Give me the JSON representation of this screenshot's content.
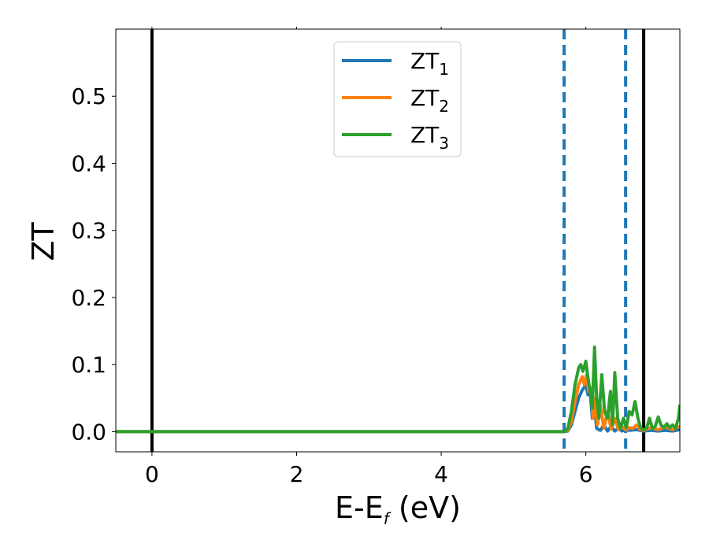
{
  "chart_data": {
    "type": "line",
    "xlabel": "E-E",
    "xlabel_sub": "f",
    "xlabel_unit": " (eV)",
    "ylabel": "ZT",
    "xlim": [
      -0.5,
      7.3
    ],
    "ylim": [
      -0.03,
      0.6
    ],
    "xticks": [
      0,
      2,
      4,
      6
    ],
    "xtick_labels": [
      "0",
      "2",
      "4",
      "6"
    ],
    "yticks": [
      0.0,
      0.1,
      0.2,
      0.3,
      0.4,
      0.5
    ],
    "ytick_labels": [
      "0.0",
      "0.1",
      "0.2",
      "0.3",
      "0.4",
      "0.5"
    ],
    "grid": false,
    "legend_position": "top-center",
    "vlines": [
      {
        "x": 0.0,
        "color": "#000000",
        "style": "solid"
      },
      {
        "x": 5.7,
        "color": "#1f77b4",
        "style": "dashed"
      },
      {
        "x": 6.55,
        "color": "#1f77b4",
        "style": "dashed"
      },
      {
        "x": 6.8,
        "color": "#000000",
        "style": "solid"
      }
    ],
    "series": [
      {
        "name": "ZT",
        "sub": "1",
        "color": "#1f77b4",
        "points": [
          [
            -0.5,
            0
          ],
          [
            5.7,
            0
          ],
          [
            5.75,
            0.001
          ],
          [
            5.8,
            0.01
          ],
          [
            5.85,
            0.03
          ],
          [
            5.9,
            0.05
          ],
          [
            5.95,
            0.062
          ],
          [
            6.0,
            0.07
          ],
          [
            6.03,
            0.055
          ],
          [
            6.06,
            0.058
          ],
          [
            6.09,
            0.02
          ],
          [
            6.12,
            0.035
          ],
          [
            6.15,
            0.005
          ],
          [
            6.2,
            0.002
          ],
          [
            6.25,
            0.01
          ],
          [
            6.3,
            0.001
          ],
          [
            6.35,
            0.008
          ],
          [
            6.4,
            0.001
          ],
          [
            6.45,
            0.005
          ],
          [
            6.5,
            0.001
          ],
          [
            6.55,
            0.003
          ],
          [
            6.6,
            0.002
          ],
          [
            6.7,
            0.003
          ],
          [
            6.8,
            0.001
          ],
          [
            6.9,
            0.002
          ],
          [
            7.0,
            0.001
          ],
          [
            7.1,
            0.002
          ],
          [
            7.2,
            0.001
          ],
          [
            7.3,
            0.003
          ]
        ]
      },
      {
        "name": "ZT",
        "sub": "2",
        "color": "#ff7f0e",
        "points": [
          [
            -0.5,
            0
          ],
          [
            5.7,
            0
          ],
          [
            5.75,
            0.002
          ],
          [
            5.8,
            0.015
          ],
          [
            5.85,
            0.045
          ],
          [
            5.9,
            0.07
          ],
          [
            5.95,
            0.082
          ],
          [
            5.98,
            0.07
          ],
          [
            6.01,
            0.085
          ],
          [
            6.04,
            0.06
          ],
          [
            6.07,
            0.065
          ],
          [
            6.1,
            0.02
          ],
          [
            6.13,
            0.05
          ],
          [
            6.16,
            0.01
          ],
          [
            6.2,
            0.04
          ],
          [
            6.25,
            0.005
          ],
          [
            6.3,
            0.03
          ],
          [
            6.35,
            0.004
          ],
          [
            6.4,
            0.02
          ],
          [
            6.45,
            0.003
          ],
          [
            6.5,
            0.008
          ],
          [
            6.55,
            0.003
          ],
          [
            6.6,
            0.006
          ],
          [
            6.65,
            0.005
          ],
          [
            6.7,
            0.01
          ],
          [
            6.75,
            0.003
          ],
          [
            6.8,
            0.002
          ],
          [
            6.9,
            0.006
          ],
          [
            7.0,
            0.003
          ],
          [
            7.1,
            0.007
          ],
          [
            7.2,
            0.003
          ],
          [
            7.3,
            0.008
          ]
        ]
      },
      {
        "name": "ZT",
        "sub": "3",
        "color": "#2ca02c",
        "points": [
          [
            -0.5,
            0
          ],
          [
            5.7,
            0
          ],
          [
            5.75,
            0.004
          ],
          [
            5.8,
            0.03
          ],
          [
            5.85,
            0.07
          ],
          [
            5.9,
            0.095
          ],
          [
            5.93,
            0.1
          ],
          [
            5.96,
            0.09
          ],
          [
            6.0,
            0.105
          ],
          [
            6.03,
            0.08
          ],
          [
            6.06,
            0.06
          ],
          [
            6.09,
            0.035
          ],
          [
            6.12,
            0.126
          ],
          [
            6.15,
            0.05
          ],
          [
            6.18,
            0.02
          ],
          [
            6.22,
            0.085
          ],
          [
            6.26,
            0.03
          ],
          [
            6.3,
            0.02
          ],
          [
            6.34,
            0.06
          ],
          [
            6.37,
            0.01
          ],
          [
            6.4,
            0.088
          ],
          [
            6.44,
            0.02
          ],
          [
            6.48,
            0.005
          ],
          [
            6.52,
            0.02
          ],
          [
            6.56,
            0.006
          ],
          [
            6.6,
            0.03
          ],
          [
            6.64,
            0.025
          ],
          [
            6.68,
            0.045
          ],
          [
            6.72,
            0.02
          ],
          [
            6.76,
            0.005
          ],
          [
            6.8,
            0.003
          ],
          [
            6.84,
            0.005
          ],
          [
            6.88,
            0.02
          ],
          [
            6.92,
            0.005
          ],
          [
            6.96,
            0.008
          ],
          [
            7.0,
            0.022
          ],
          [
            7.04,
            0.01
          ],
          [
            7.08,
            0.006
          ],
          [
            7.12,
            0.012
          ],
          [
            7.16,
            0.006
          ],
          [
            7.2,
            0.01
          ],
          [
            7.24,
            0.005
          ],
          [
            7.28,
            0.02
          ],
          [
            7.3,
            0.04
          ]
        ]
      }
    ]
  }
}
